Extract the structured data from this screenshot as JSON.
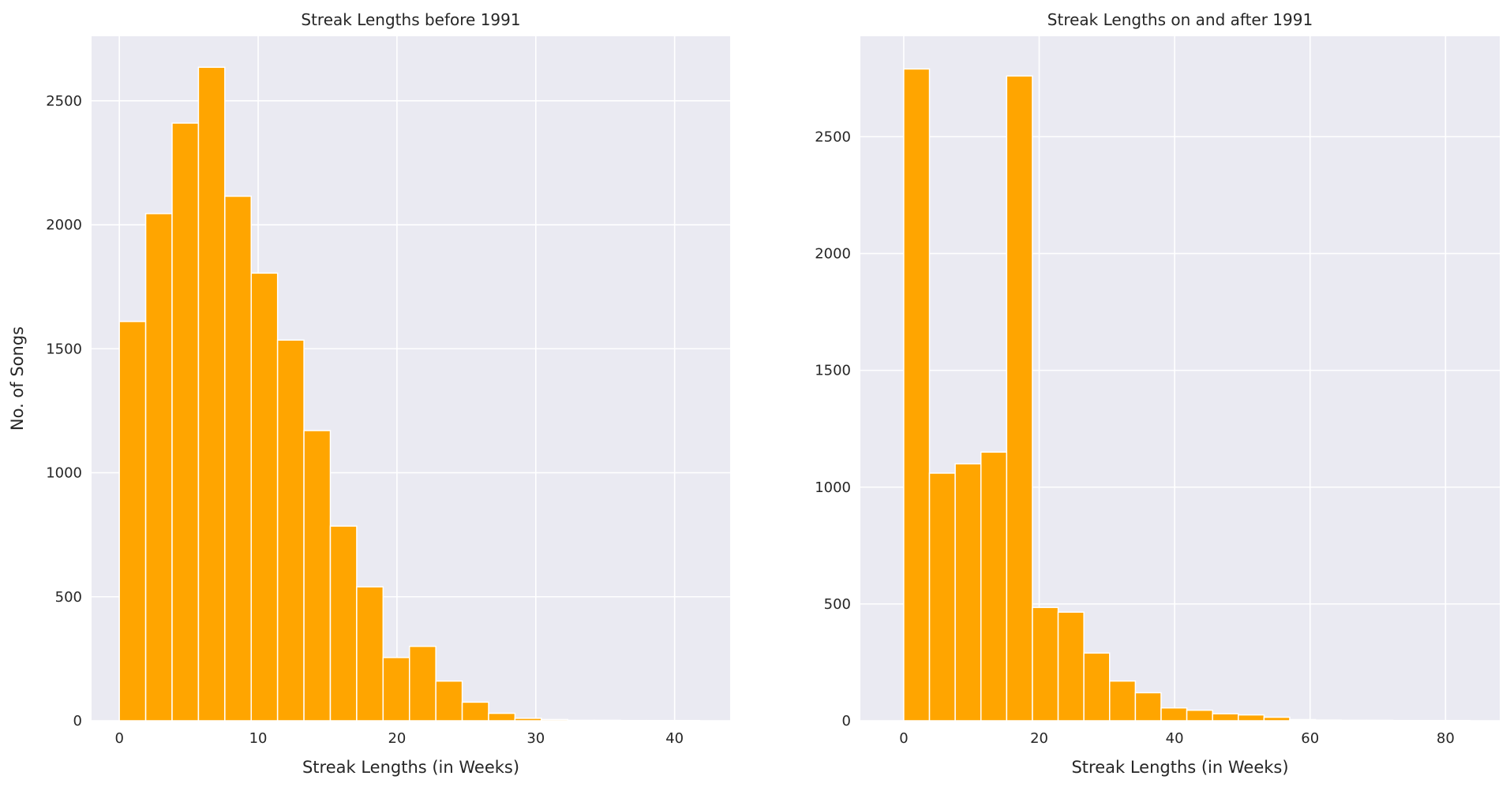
{
  "chart_data": [
    {
      "type": "bar",
      "title": "Streak Lengths before 1991",
      "xlabel": "Streak Lengths (in Weeks)",
      "ylabel": "No. of Songs",
      "xlim": [
        -2,
        44
      ],
      "ylim": [
        0,
        2760
      ],
      "grid": true,
      "xticks": [
        0,
        10,
        20,
        30,
        40
      ],
      "yticks": [
        0,
        500,
        1000,
        1500,
        2000,
        2500
      ],
      "bins": {
        "edges": [
          0,
          1.9,
          3.8,
          5.7,
          7.6,
          9.5,
          11.4,
          13.3,
          15.2,
          17.1,
          19,
          20.9,
          22.8,
          24.7,
          26.6,
          28.5,
          30.4,
          32.3,
          34.2,
          36.1,
          38,
          39.9,
          41.8
        ],
        "values": [
          1610,
          2045,
          2410,
          2635,
          2115,
          1805,
          1535,
          1170,
          785,
          540,
          255,
          300,
          160,
          75,
          30,
          10,
          5,
          2,
          2,
          1,
          1,
          1
        ]
      }
    },
    {
      "type": "bar",
      "title": "Streak Lengths on and after 1991",
      "xlabel": "Streak Lengths (in Weeks)",
      "ylabel": "",
      "xlim": [
        -6.4,
        88
      ],
      "ylim": [
        0,
        2930
      ],
      "grid": true,
      "xticks": [
        0,
        20,
        40,
        60,
        80
      ],
      "yticks": [
        0,
        500,
        1000,
        1500,
        2000,
        2500
      ],
      "bins": {
        "edges": [
          0,
          3.8,
          7.6,
          11.4,
          15.2,
          19,
          22.8,
          26.6,
          30.4,
          34.2,
          38,
          41.8,
          45.6,
          49.4,
          53.2,
          57,
          60.8,
          64.6,
          68.4,
          72.2,
          76,
          79.8,
          83.6
        ],
        "values": [
          2790,
          1060,
          1100,
          1150,
          2760,
          485,
          465,
          290,
          170,
          120,
          55,
          45,
          30,
          25,
          15,
          5,
          3,
          2,
          2,
          1,
          1,
          1
        ]
      }
    }
  ]
}
